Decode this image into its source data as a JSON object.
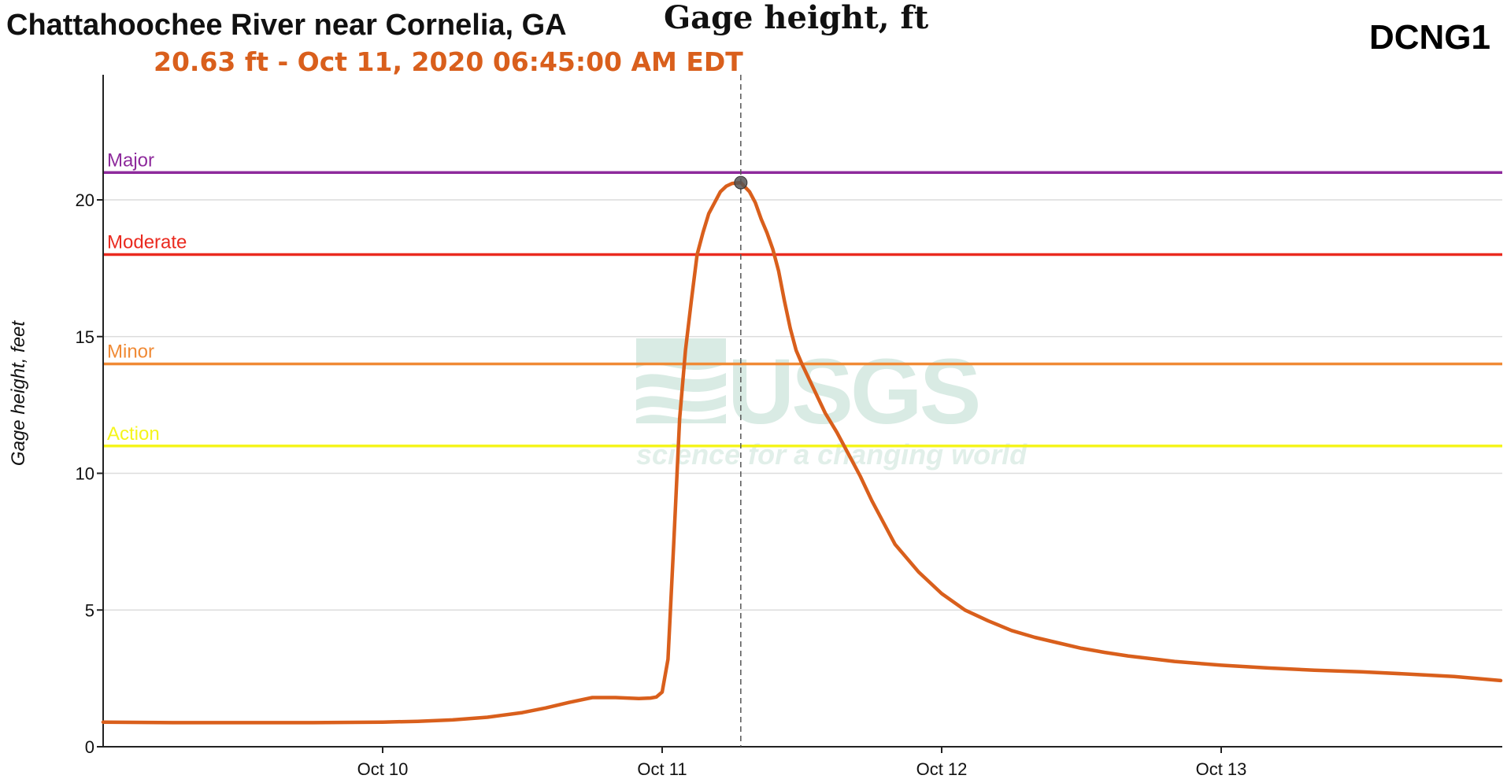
{
  "header": {
    "site_title": "Chattahoochee River near Cornelia, GA",
    "parameter_title": "Gage height, ft",
    "site_id": "DCNG1",
    "readout": "20.63 ft - Oct 11, 2020 06:45:00 AM EDT"
  },
  "watermark": {
    "text": "USGS",
    "tagline": "science for a changing world"
  },
  "colors": {
    "series": "#d95f1c",
    "major": "#8e2a9c",
    "moderate": "#ea2a1f",
    "minor": "#f08a35",
    "action": "#f5f51c",
    "grid": "#dcdcdc",
    "cursor": "#555555",
    "watermark": "#d9ebe4"
  },
  "chart_data": {
    "type": "line",
    "title": "Gage height, ft",
    "xlabel": "",
    "ylabel": "Gage height, feet",
    "x_unit": "hours from Oct 9, 2020 00:00 EDT",
    "xlim": [
      0,
      120
    ],
    "ylim": [
      0,
      25
    ],
    "y_ticks": [
      0,
      5,
      10,
      15,
      20
    ],
    "x_ticks": [
      {
        "label": "Oct 10",
        "x": 24
      },
      {
        "label": "Oct 11",
        "x": 48
      },
      {
        "label": "Oct 12",
        "x": 72
      },
      {
        "label": "Oct 13",
        "x": 96
      }
    ],
    "grid": true,
    "thresholds": [
      {
        "name": "Major",
        "value": 21.0,
        "color": "#8e2a9c"
      },
      {
        "name": "Moderate",
        "value": 18.0,
        "color": "#ea2a1f"
      },
      {
        "name": "Minor",
        "value": 14.0,
        "color": "#f08a35"
      },
      {
        "name": "Action",
        "value": 11.0,
        "color": "#f5f51c"
      }
    ],
    "cursor": {
      "x": 54.75,
      "y": 20.63
    },
    "series": [
      {
        "x": [
          0,
          6,
          12,
          18,
          24,
          27,
          30,
          33,
          36,
          38,
          40,
          42,
          44,
          45,
          46,
          47,
          47.5,
          48,
          48.5,
          49,
          49.5,
          50,
          50.5,
          51,
          51.5,
          52,
          52.5,
          53,
          53.5,
          54,
          54.75,
          55.5,
          56,
          56.5,
          57,
          57.5,
          58,
          58.5,
          59,
          59.5,
          60,
          61,
          62,
          63,
          64,
          65,
          66,
          67,
          68,
          69,
          70,
          71,
          72,
          74,
          76,
          78,
          80,
          82,
          84,
          86,
          88,
          90,
          92,
          94,
          96,
          100,
          104,
          108,
          112,
          116,
          120
        ],
        "y": [
          0.9,
          0.88,
          0.88,
          0.88,
          0.9,
          0.93,
          0.98,
          1.08,
          1.25,
          1.42,
          1.62,
          1.8,
          1.8,
          1.78,
          1.76,
          1.78,
          1.82,
          2.0,
          3.2,
          7.5,
          12.0,
          14.5,
          16.3,
          18.0,
          18.8,
          19.5,
          19.9,
          20.3,
          20.5,
          20.6,
          20.63,
          20.3,
          19.9,
          19.3,
          18.8,
          18.2,
          17.4,
          16.3,
          15.3,
          14.5,
          14.0,
          13.1,
          12.2,
          11.5,
          10.7,
          9.9,
          9.0,
          8.2,
          7.4,
          6.9,
          6.4,
          6.0,
          5.6,
          5.0,
          4.6,
          4.25,
          4.0,
          3.8,
          3.6,
          3.45,
          3.32,
          3.22,
          3.12,
          3.05,
          2.98,
          2.88,
          2.8,
          2.74,
          2.66,
          2.57,
          2.42
        ]
      }
    ]
  }
}
